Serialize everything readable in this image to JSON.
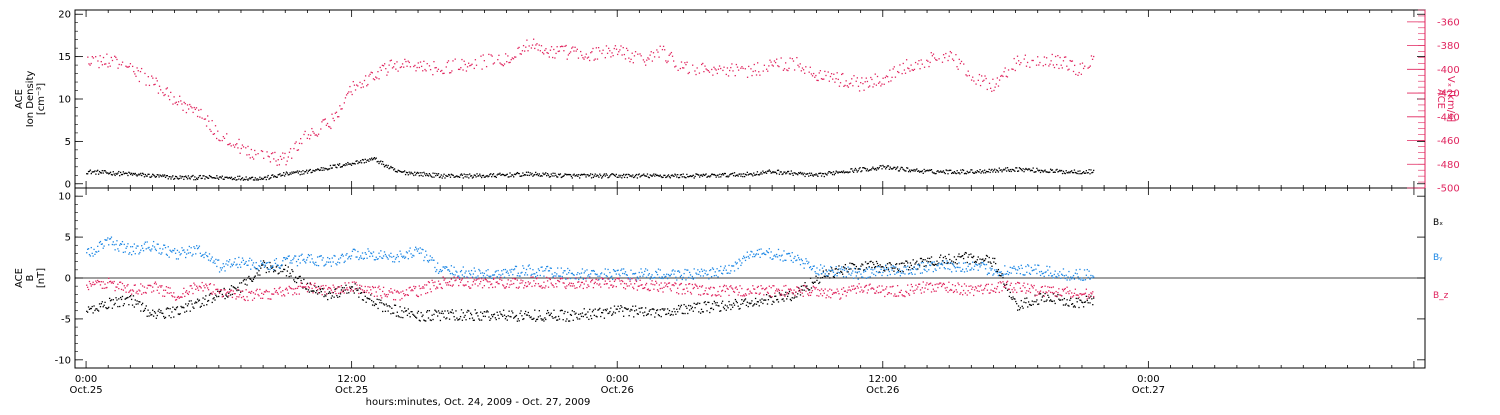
{
  "footer": {
    "xtitle": "hours:minutes, Oct. 24, 2009 - Oct. 27, 2009"
  },
  "colors": {
    "density": "#000000",
    "vx": "#e0245e",
    "bx": "#000000",
    "by": "#1e88e5",
    "bz": "#e0245e"
  },
  "x_axis": {
    "range_hours": [
      -0.5,
      60.5
    ],
    "major_ticks": [
      {
        "hours": 0,
        "time": "0:00",
        "date": "Oct.25"
      },
      {
        "hours": 12,
        "time": "12:00",
        "date": "Oct.25"
      },
      {
        "hours": 24,
        "time": "0:00",
        "date": "Oct.26"
      },
      {
        "hours": 36,
        "time": "12:00",
        "date": "Oct.26"
      },
      {
        "hours": 48,
        "time": "0:00",
        "date": "Oct.27"
      }
    ]
  },
  "chart_data": [
    {
      "type": "scatter",
      "panel": "top",
      "ylabel_left": [
        "ACE",
        "Ion Density",
        "[cm⁻³]"
      ],
      "ylabel_right": [
        "ACE",
        "Vₓ [km/s]"
      ],
      "ylim_left": [
        -0.5,
        20.5
      ],
      "yticks_left": [
        0,
        5,
        10,
        15,
        20
      ],
      "ylim_right": [
        -500,
        -350
      ],
      "yticks_right": [
        -360,
        -380,
        -400,
        -420,
        -440,
        -460,
        -480,
        -500
      ],
      "series": [
        {
          "key": "density",
          "axis": "left",
          "x": [
            0,
            2,
            4,
            6,
            8,
            9,
            10,
            11,
            12,
            13,
            14,
            16,
            18,
            20,
            22,
            24,
            26,
            28,
            30,
            31,
            32,
            33,
            34,
            36,
            38,
            40,
            42,
            44,
            45.5
          ],
          "y": [
            1.5,
            1.2,
            0.8,
            0.8,
            0.7,
            1.2,
            1.5,
            2.0,
            2.5,
            3.0,
            1.5,
            1.0,
            1.0,
            1.2,
            1.0,
            1.0,
            1.0,
            1.0,
            1.2,
            1.5,
            1.3,
            1.0,
            1.5,
            2.0,
            1.5,
            1.5,
            1.8,
            1.5,
            1.5
          ]
        },
        {
          "key": "vx",
          "axis": "right",
          "x": [
            0,
            1,
            2,
            3,
            4,
            5,
            6,
            7,
            8,
            9,
            10,
            11,
            12,
            13,
            14,
            15,
            16,
            17,
            18,
            19,
            20,
            21,
            22,
            23,
            24,
            25,
            26,
            27,
            28,
            29,
            30,
            31,
            32,
            33,
            34,
            35,
            36,
            37,
            38,
            39,
            40,
            41,
            42,
            43,
            44,
            45,
            45.5
          ],
          "y": [
            -395,
            -392,
            -400,
            -410,
            -425,
            -435,
            -455,
            -465,
            -475,
            -475,
            -455,
            -445,
            -415,
            -405,
            -395,
            -398,
            -398,
            -396,
            -393,
            -390,
            -378,
            -385,
            -385,
            -387,
            -383,
            -392,
            -385,
            -398,
            -400,
            -400,
            -401,
            -397,
            -394,
            -403,
            -408,
            -412,
            -408,
            -397,
            -392,
            -386,
            -408,
            -413,
            -394,
            -391,
            -393,
            -400,
            -390
          ]
        }
      ]
    },
    {
      "type": "scatter",
      "panel": "bottom",
      "ylabel_left": [
        "ACE",
        "B",
        "[nT]"
      ],
      "ylim_left": [
        -11,
        11
      ],
      "yticks_left": [
        -10,
        -5,
        0,
        5,
        10
      ],
      "zero_line": true,
      "legend": [
        {
          "key": "bx",
          "label": "Bₓ"
        },
        {
          "key": "by",
          "label": "Bᵧ"
        },
        {
          "key": "bz",
          "label": "B_z"
        }
      ],
      "series": [
        {
          "key": "bx",
          "x": [
            0,
            1,
            2,
            3,
            4,
            5,
            6,
            7,
            8,
            9,
            10,
            11,
            12,
            13,
            14,
            15,
            16,
            18,
            20,
            22,
            24,
            26,
            28,
            30,
            31,
            32,
            33,
            34,
            35,
            36,
            37,
            38,
            39,
            40,
            41,
            42,
            43,
            44,
            45,
            45.5
          ],
          "y": [
            -4,
            -3,
            -2.5,
            -4.5,
            -4,
            -3,
            -2,
            -1,
            1.5,
            1,
            -1,
            -2,
            -1,
            -3,
            -4,
            -4.5,
            -4.5,
            -4.5,
            -4.5,
            -4.5,
            -4,
            -4,
            -3.5,
            -3,
            -2.5,
            -2,
            0,
            1,
            1.5,
            1.5,
            1.5,
            2,
            2.5,
            2.5,
            2,
            -3.5,
            -2.5,
            -2.5,
            -3,
            -2.5
          ]
        },
        {
          "key": "by",
          "x": [
            0,
            1,
            2,
            3,
            4,
            5,
            6,
            7,
            8,
            9,
            10,
            11,
            12,
            13,
            14,
            15,
            16,
            18,
            20,
            22,
            24,
            26,
            28,
            29,
            30,
            31,
            32,
            33,
            34,
            35,
            36,
            37,
            38,
            39,
            40,
            41,
            42,
            43,
            44,
            45,
            45.5
          ],
          "y": [
            3,
            4.5,
            3.5,
            4,
            3,
            3.5,
            1.5,
            2,
            1.5,
            2,
            2.5,
            2,
            3,
            3,
            2.5,
            3.5,
            1,
            0.5,
            1,
            0.5,
            0.5,
            0.5,
            0.5,
            1,
            3,
            3,
            2.5,
            1,
            1,
            0.5,
            1,
            1,
            1.5,
            1.5,
            1.5,
            1,
            1,
            1,
            0.5,
            0.5,
            0.5
          ]
        },
        {
          "key": "bz",
          "x": [
            0,
            1,
            2,
            3,
            4,
            5,
            6,
            7,
            8,
            9,
            10,
            11,
            12,
            13,
            14,
            15,
            16,
            18,
            20,
            22,
            24,
            26,
            28,
            30,
            31,
            32,
            33,
            34,
            35,
            36,
            37,
            38,
            39,
            40,
            41,
            42,
            43,
            44,
            45,
            45.5
          ],
          "y": [
            -1,
            -0.5,
            -1.5,
            -1,
            -2,
            -1,
            -1.5,
            -2,
            -2,
            -1.5,
            -1,
            -1.5,
            -1,
            -1.5,
            -2,
            -1.5,
            -0.5,
            -0.5,
            -0.5,
            -0.5,
            -0.5,
            -1,
            -1.5,
            -1.5,
            -1.5,
            -1.5,
            -1.5,
            -2,
            -1,
            -1.5,
            -1.5,
            -1,
            -1,
            -1.5,
            -1,
            -1,
            -1.5,
            -1.5,
            -2,
            -1.5
          ]
        }
      ]
    }
  ]
}
